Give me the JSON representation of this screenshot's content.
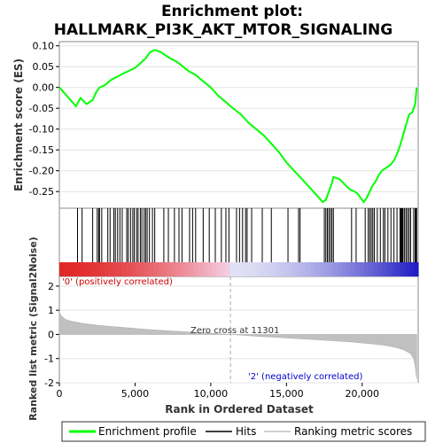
{
  "chart_data": {
    "type": "line",
    "title_line1": "Enrichment plot:",
    "title_line2": "HALLMARK_PI3K_AKT_MTOR_SIGNALING",
    "ylabel_top": "Enrichment score (ES)",
    "ylabel_bottom": "Ranked list metric (Signal2Noise)",
    "xlabel": "Rank in Dataset Ordered",
    "xlabel_display": "Rank in Ordered Dataset",
    "xlim": [
      0,
      23700
    ],
    "x_ticks": [
      0,
      5000,
      10000,
      15000,
      20000
    ],
    "x_tick_labels": [
      "0",
      "5,000",
      "10,000",
      "15,000",
      "20,000"
    ],
    "es_ylim": [
      -0.29,
      0.11
    ],
    "es_ticks": [
      0.1,
      0.05,
      0.0,
      -0.05,
      -0.1,
      -0.15,
      -0.2,
      -0.25
    ],
    "es_tick_labels": [
      "0.10",
      "0.05",
      "0.00",
      "-0.05",
      "-0.10",
      "-0.15",
      "-0.20",
      "-0.25"
    ],
    "metric_ylim": [
      -2.0,
      2.4
    ],
    "metric_ticks": [
      2,
      1,
      0,
      -1,
      -2
    ],
    "zero_cross": 11301,
    "zero_cross_label": "Zero cross at 11301",
    "pos_label": "'0' (positively correlated)",
    "neg_label": "'2' (negatively correlated)",
    "legend": [
      "Enrichment profile",
      "Hits",
      "Ranking metric scores"
    ],
    "colors": {
      "enrichment": "#00ff00",
      "hits": "#000000",
      "metric_fill": "#c0c0c0",
      "pos_label": "#cc0000",
      "neg_label": "#0000cc",
      "zero_line": "#aaaaaa"
    },
    "es_curve": {
      "x": [
        0,
        1100,
        1400,
        1800,
        2200,
        2450,
        2650,
        3000,
        3300,
        3500,
        3800,
        4050,
        4300,
        4600,
        4900,
        5100,
        5400,
        5700,
        6000,
        6300,
        6700,
        7100,
        7400,
        7700,
        8000,
        8500,
        9000,
        9500,
        10000,
        10500,
        11000,
        11300,
        12000,
        12500,
        13000,
        13500,
        14000,
        14500,
        15000,
        15500,
        15900,
        16400,
        16900,
        17400,
        17600,
        17800,
        18000,
        18100,
        18500,
        18900,
        19200,
        19500,
        19700,
        19900,
        20100,
        20300,
        20500,
        20700,
        20900,
        21100,
        21300,
        21500,
        21700,
        21900,
        22100,
        22300,
        22500,
        22700,
        22900,
        23100,
        23300,
        23500,
        23600
      ],
      "y": [
        0.0,
        -0.045,
        -0.025,
        -0.04,
        -0.03,
        -0.01,
        0.0,
        0.005,
        0.015,
        0.02,
        0.025,
        0.03,
        0.035,
        0.04,
        0.045,
        0.05,
        0.06,
        0.07,
        0.085,
        0.09,
        0.085,
        0.075,
        0.068,
        0.063,
        0.055,
        0.04,
        0.03,
        0.015,
        0.0,
        -0.02,
        -0.035,
        -0.045,
        -0.065,
        -0.085,
        -0.1,
        -0.115,
        -0.135,
        -0.155,
        -0.18,
        -0.2,
        -0.215,
        -0.235,
        -0.255,
        -0.275,
        -0.27,
        -0.25,
        -0.23,
        -0.215,
        -0.22,
        -0.235,
        -0.245,
        -0.25,
        -0.255,
        -0.265,
        -0.275,
        -0.265,
        -0.25,
        -0.235,
        -0.225,
        -0.21,
        -0.2,
        -0.195,
        -0.19,
        -0.185,
        -0.175,
        -0.16,
        -0.14,
        -0.115,
        -0.09,
        -0.065,
        -0.06,
        -0.04,
        0.0
      ]
    },
    "hits": [
      1200,
      1500,
      2200,
      2500,
      2600,
      2650,
      2800,
      3200,
      3350,
      3600,
      3700,
      3850,
      4000,
      4150,
      4450,
      4550,
      4700,
      4850,
      4950,
      5100,
      5200,
      5350,
      5450,
      5600,
      5700,
      5800,
      5950,
      6150,
      6300,
      6900,
      7200,
      7600,
      7900,
      8100,
      8600,
      8800,
      9000,
      9500,
      9900,
      10300,
      10700,
      11000,
      11200,
      11700,
      11900,
      12100,
      12300,
      12400,
      12700,
      13400,
      14000,
      15100,
      15800,
      15900,
      17500,
      17600,
      17700,
      17800,
      17900,
      18000,
      18100,
      19300,
      19600,
      20200,
      20400,
      20500,
      20600,
      20700,
      20800,
      21000,
      21200,
      21400,
      21500,
      21700,
      21900,
      22100,
      22300,
      22500,
      22550,
      22600,
      22650,
      22700,
      22800,
      22900,
      23000,
      23100,
      23200,
      23400,
      23500,
      23550,
      23600
    ],
    "metric_curve": {
      "x": [
        0,
        150,
        400,
        800,
        1500,
        2500,
        4000,
        6000,
        8000,
        10000,
        11301,
        13000,
        15000,
        17000,
        19000,
        20500,
        21500,
        22300,
        22800,
        23200,
        23400,
        23500,
        23600
      ],
      "y": [
        0.9,
        0.75,
        0.62,
        0.55,
        0.46,
        0.38,
        0.3,
        0.2,
        0.12,
        0.05,
        0.0,
        -0.07,
        -0.15,
        -0.22,
        -0.3,
        -0.38,
        -0.45,
        -0.55,
        -0.65,
        -0.8,
        -1.0,
        -1.3,
        -1.85
      ]
    }
  }
}
